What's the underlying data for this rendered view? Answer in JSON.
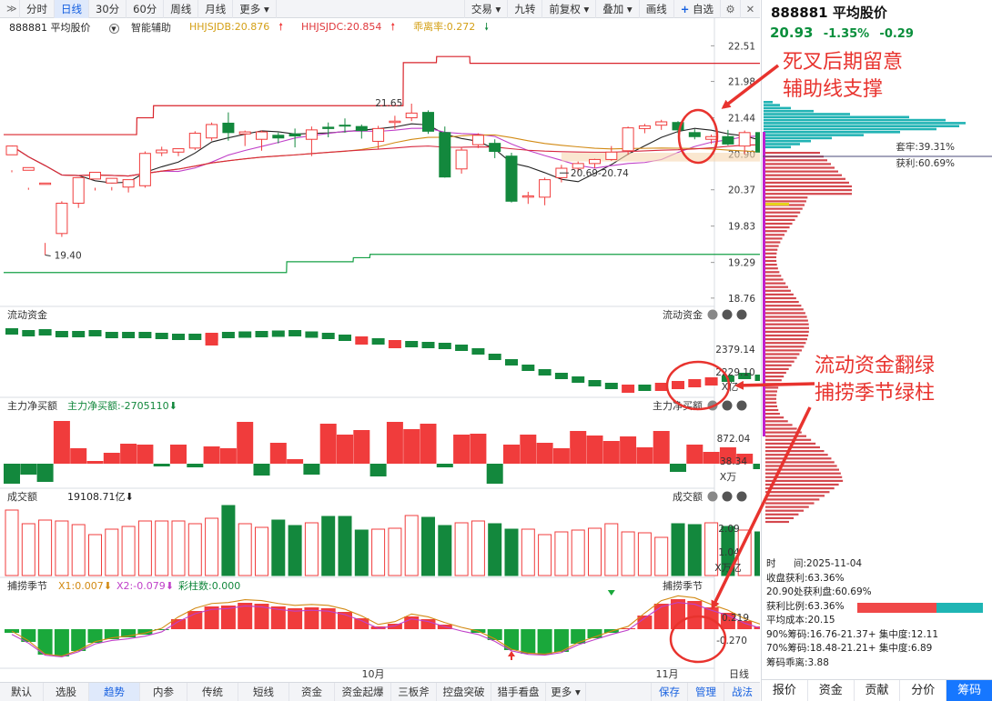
{
  "toolbar": {
    "collapse": "≫",
    "periods": [
      "分时",
      "日线",
      "30分",
      "60分",
      "周线",
      "月线",
      "更多"
    ],
    "active_period": "日线",
    "right": [
      "交易",
      "九转",
      "前复权",
      "叠加",
      "画线",
      "自选"
    ]
  },
  "header": {
    "name": "888881 平均股价",
    "assist": "智能辅助",
    "hhjsjdb": "HHJSJDB:20.876",
    "hhjsjdc": "HHJSJDC:20.854",
    "chouli": "乖离率:0.272"
  },
  "colors": {
    "up": "#f03c3c",
    "down": "#13883d",
    "annotation": "#e8332e",
    "blue": "#1660e0"
  },
  "panels": {
    "flow": {
      "title": "流动资金",
      "right_label": "流动资金",
      "ticks": [
        "2379.14",
        "2229.10"
      ],
      "unit": "X亿"
    },
    "main_net": {
      "title": "主力净买额",
      "value": "主力净买额:-2705110",
      "right_label": "主力净买额",
      "ticks": [
        "872.04",
        "38.34"
      ],
      "unit": "X万"
    },
    "turnover": {
      "title": "成交额",
      "value": "19108.71亿",
      "right_label": "成交额",
      "ticks": [
        "2.09",
        "1.04"
      ],
      "unit": "X万亿"
    },
    "season": {
      "title": "捕捞季节",
      "x1": "X1:0.007",
      "x2": "X2:-0.079",
      "bars": "彩柱数:0.000",
      "right_label": "捕捞季节",
      "ticks": [
        "0.219",
        "-0.270"
      ]
    }
  },
  "x_axis": {
    "labels": [
      "10月",
      "11月"
    ],
    "right": "日线"
  },
  "chart_data": {
    "type": "candlestick",
    "y_ticks": [
      22.51,
      21.98,
      21.44,
      20.9,
      20.37,
      19.83,
      19.29,
      18.76
    ],
    "ylim": [
      18.65,
      22.65
    ],
    "candles": [
      [
        20.89,
        21.02,
        20.66,
        20.63
      ],
      [
        20.66,
        20.7,
        20.4,
        20.37
      ],
      [
        20.45,
        20.47,
        19.58,
        19.4
      ],
      [
        19.72,
        20.17,
        20.2,
        19.67
      ],
      [
        20.17,
        20.55,
        20.55,
        20.1
      ],
      [
        20.53,
        20.63,
        20.4,
        20.36
      ],
      [
        20.47,
        20.54,
        20.41,
        20.36
      ],
      [
        20.41,
        20.52,
        20.41,
        20.33
      ],
      [
        20.43,
        20.91,
        20.94,
        20.4
      ],
      [
        20.92,
        20.96,
        21.01,
        20.87
      ],
      [
        20.93,
        20.98,
        20.98,
        20.87
      ],
      [
        20.99,
        21.21,
        21.24,
        20.96
      ],
      [
        21.14,
        21.34,
        21.37,
        21.1
      ],
      [
        21.36,
        21.22,
        21.52,
        21.1
      ],
      [
        21.2,
        21.23,
        21.25,
        21.02
      ],
      [
        21.12,
        21.23,
        21.25,
        20.95
      ],
      [
        21.18,
        21.14,
        21.22,
        21.06
      ],
      [
        21.2,
        21.17,
        21.28,
        21.0
      ],
      [
        21.12,
        21.26,
        21.31,
        20.87
      ],
      [
        21.3,
        21.28,
        21.37,
        21.15
      ],
      [
        21.33,
        21.32,
        21.43,
        21.22
      ],
      [
        21.31,
        21.25,
        21.34,
        21.13
      ],
      [
        21.09,
        21.28,
        21.32,
        20.98
      ],
      [
        21.37,
        21.39,
        21.47,
        21.27
      ],
      [
        21.44,
        21.51,
        21.65,
        21.39
      ],
      [
        21.52,
        21.24,
        21.55,
        21.2
      ],
      [
        21.22,
        20.56,
        21.31,
        20.55
      ],
      [
        20.68,
        20.96,
        21.0,
        20.61
      ],
      [
        21.04,
        21.18,
        21.21,
        20.99
      ],
      [
        21.06,
        20.94,
        21.12,
        20.84
      ],
      [
        20.87,
        20.2,
        20.92,
        20.18
      ],
      [
        20.26,
        20.28,
        20.34,
        20.16
      ],
      [
        20.26,
        20.52,
        20.55,
        20.14
      ],
      [
        20.55,
        20.69,
        20.74,
        20.48
      ],
      [
        20.69,
        20.76,
        20.79,
        20.63
      ],
      [
        20.76,
        20.82,
        20.83,
        20.69
      ],
      [
        20.82,
        20.93,
        21.02,
        20.8
      ],
      [
        20.95,
        21.29,
        21.31,
        20.89
      ],
      [
        21.28,
        21.32,
        21.35,
        21.21
      ],
      [
        21.33,
        21.38,
        21.41,
        21.26
      ],
      [
        21.37,
        21.26,
        21.39,
        21.21
      ],
      [
        21.22,
        21.16,
        21.27,
        21.12
      ],
      [
        21.12,
        21.16,
        21.19,
        21.05
      ],
      [
        21.16,
        21.05,
        21.26,
        21.03
      ],
      [
        21.02,
        21.22,
        21.25,
        20.9
      ],
      [
        21.22,
        20.93,
        21.24,
        20.88
      ]
    ],
    "annotations": {
      "high": "21.65",
      "low": "19.40",
      "range": "20.69-20.74"
    }
  },
  "right_panel": {
    "title": "888881 平均股价",
    "price": "20.93",
    "change_pct": "-1.35%",
    "change": "-0.29",
    "chip_labels": {
      "trap": "套牢:39.31%",
      "profit": "获利:60.69%"
    },
    "info": {
      "time_label": "时",
      "time_label2": "间:2025-11-04",
      "profit_close": "收盘获利:63.36%",
      "profit_at": "20.90处获利盘:60.69%",
      "profit_ratio": "获利比例:63.36%",
      "avg_cost": "平均成本:20.15",
      "chip90": "90%筹码:16.76-21.37+ 集中度:12.11",
      "chip70": "70%筹码:18.48-21.21+ 集中度:6.89",
      "chip_diff": "筹码乖离:3.88"
    },
    "tabs": [
      "报价",
      "资金",
      "贡献",
      "分价",
      "筹码"
    ],
    "active_tab": "筹码"
  },
  "bottom_tabs": [
    "默认",
    "选股",
    "趋势",
    "内参",
    "传统",
    "短线",
    "资金",
    "资金起爆",
    "三板斧",
    "控盘突破",
    "猎手看盘",
    "更多"
  ],
  "active_bottom_tab": "趋势",
  "bottom_right": [
    "保存",
    "管理",
    "战法"
  ],
  "annotations": {
    "top_line1": "死叉后期留意",
    "top_line2": "辅助线支撑",
    "mid_line1": "流动资金翻绿",
    "mid_line2": "捕捞季节绿柱"
  }
}
